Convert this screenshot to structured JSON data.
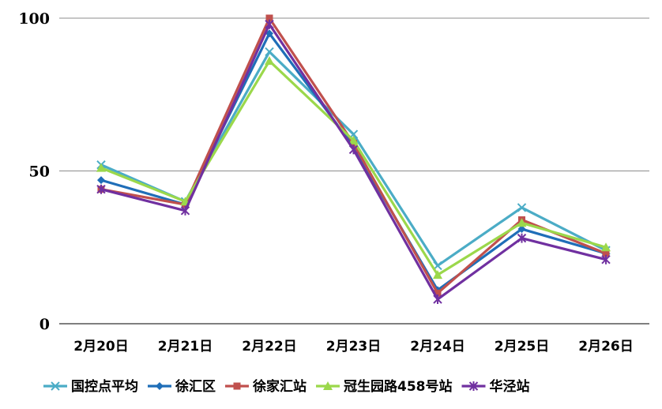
{
  "chart_data": {
    "type": "line",
    "categories": [
      "2月20日",
      "2月21日",
      "2月22日",
      "2月23日",
      "2月24日",
      "2月25日",
      "2月26日"
    ],
    "ylim": [
      0,
      100
    ],
    "yticks": [
      0,
      50,
      100
    ],
    "grid": true,
    "legend_position": "bottom",
    "series": [
      {
        "name": "国控点平均",
        "color": "#4bacc6",
        "marker": "x",
        "values": [
          52,
          40,
          89,
          62,
          19,
          38,
          24
        ]
      },
      {
        "name": "徐汇区",
        "color": "#1f6eb8",
        "marker": "diamond",
        "values": [
          47,
          39,
          95,
          58,
          11,
          31,
          23
        ]
      },
      {
        "name": "徐家汇站",
        "color": "#c0504d",
        "marker": "square",
        "values": [
          44,
          39,
          100,
          59,
          10,
          34,
          23
        ]
      },
      {
        "name": "冠生园路458号站",
        "color": "#9bd84b",
        "marker": "triangle",
        "values": [
          51,
          40,
          86,
          60,
          16,
          33,
          25
        ]
      },
      {
        "name": "华泾站",
        "color": "#7030a0",
        "marker": "asterisk",
        "values": [
          44,
          37,
          98,
          57,
          8,
          28,
          21
        ]
      }
    ]
  }
}
